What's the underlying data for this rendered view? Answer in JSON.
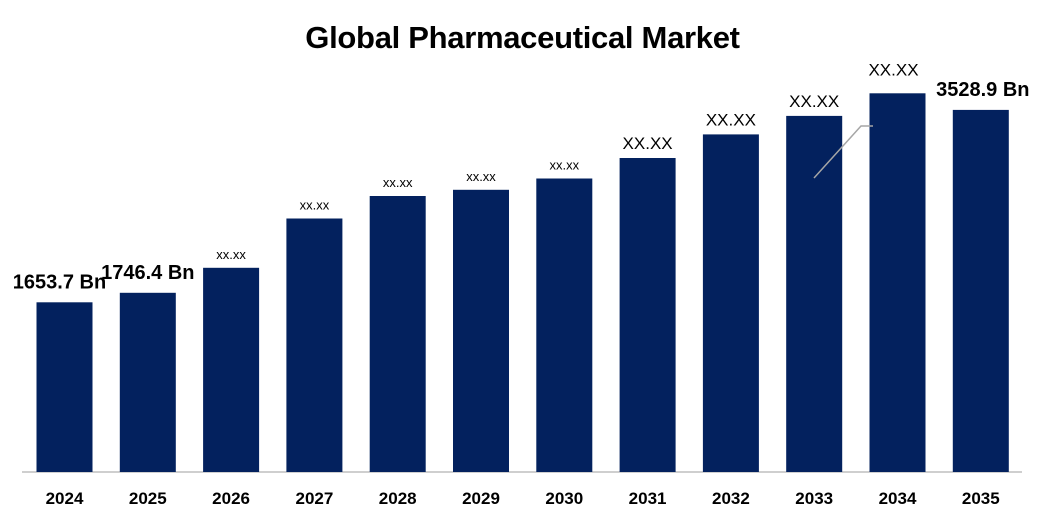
{
  "chart_data": {
    "type": "bar",
    "title": "Global Pharmaceutical Market",
    "xlabel": "",
    "ylabel": "",
    "categories": [
      "2024",
      "2025",
      "2026",
      "2027",
      "2028",
      "2029",
      "2030",
      "2031",
      "2032",
      "2033",
      "2034",
      "2035"
    ],
    "values": [
      1653.7,
      1746.4,
      1990,
      2470,
      2690,
      2750,
      2860,
      3060,
      3290,
      3470,
      3690,
      3528.9
    ],
    "data_labels": [
      "1653.7 Bn",
      "1746.4 Bn",
      "xx.xx",
      "xx.xx",
      "xx.xx",
      "xx.xx",
      "xx.xx",
      "XX.XX",
      "XX.XX",
      "XX.XX",
      "XX.XX",
      "3528.9 Bn"
    ],
    "ylim": [
      0,
      4200
    ],
    "grid": false,
    "legend": "none",
    "bar_color": "#03215e",
    "axis_color": "#bfbfbf"
  }
}
